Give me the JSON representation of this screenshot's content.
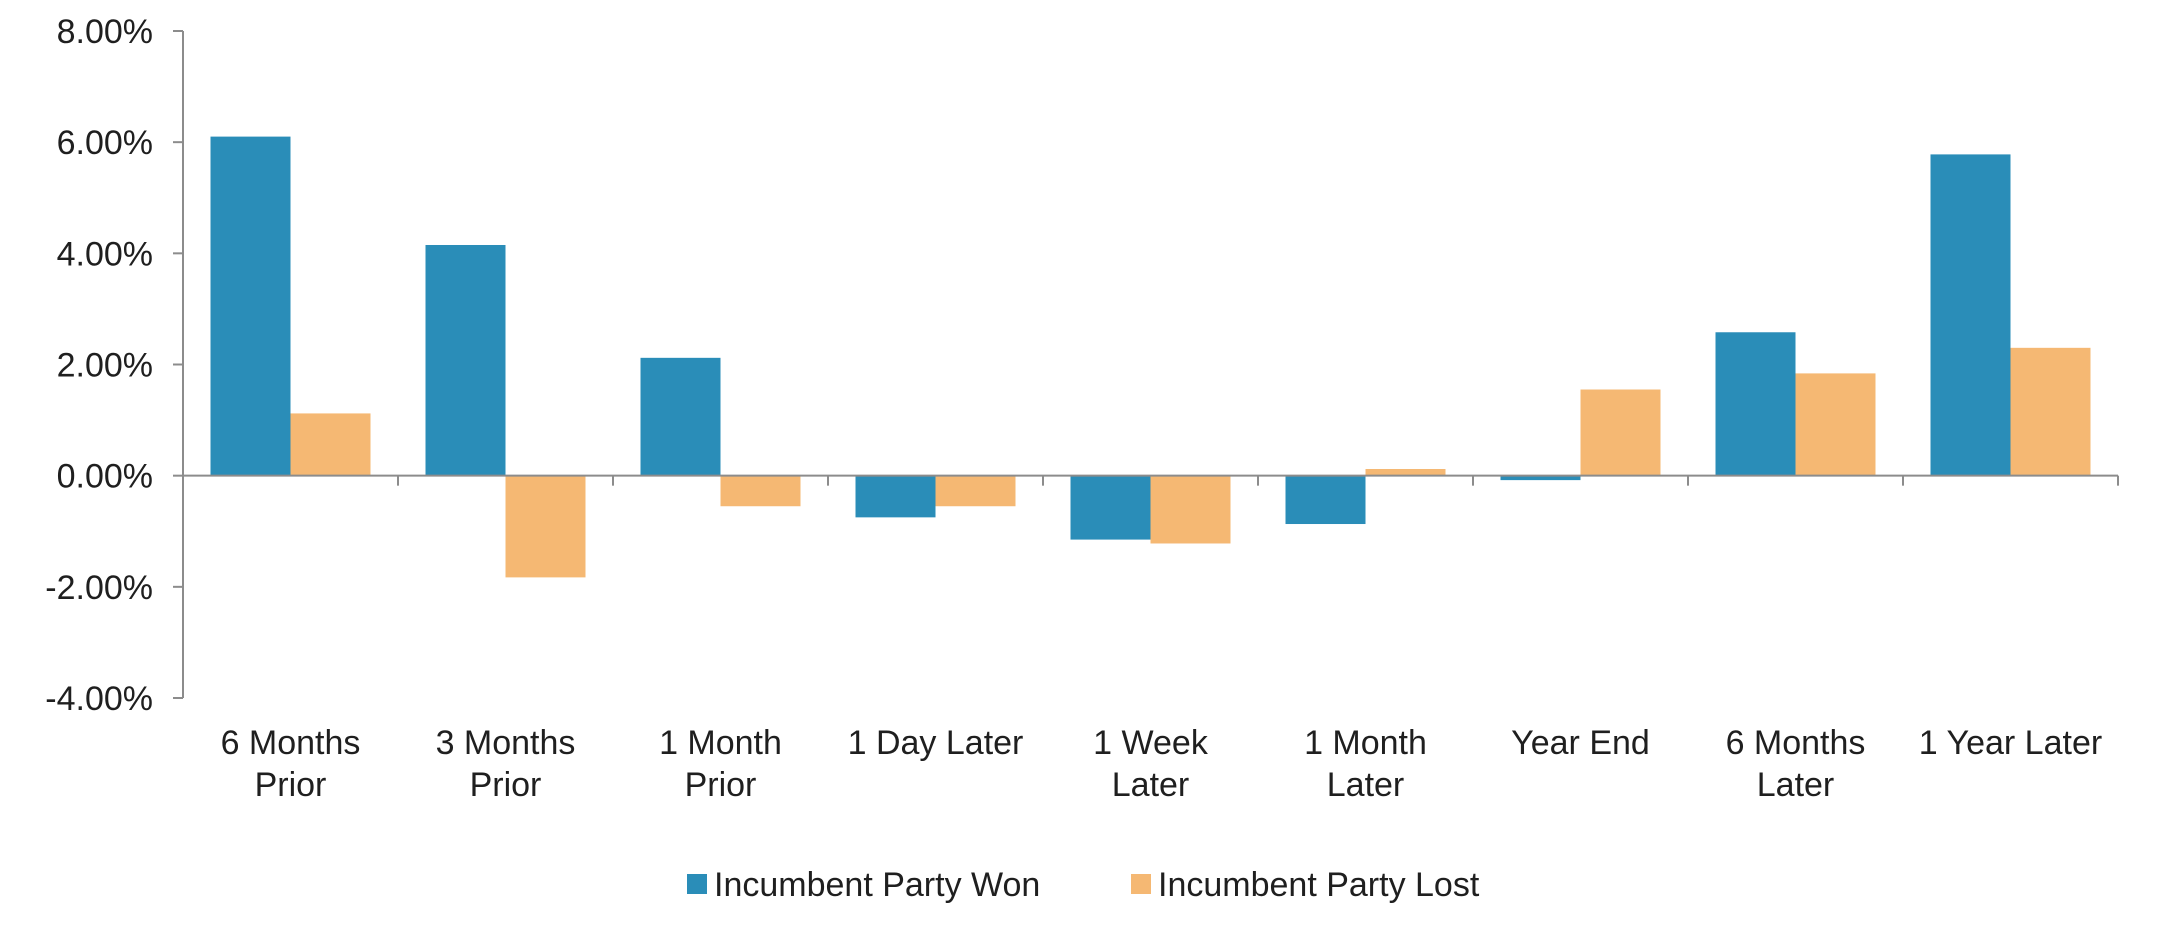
{
  "chart_data": {
    "type": "bar",
    "title": "",
    "xlabel": "",
    "ylabel": "",
    "categories": [
      [
        "6 Months",
        "Prior"
      ],
      [
        "3 Months",
        "Prior"
      ],
      [
        "1 Month",
        "Prior"
      ],
      [
        "1 Day Later"
      ],
      [
        "1 Week",
        "Later"
      ],
      [
        "1 Month",
        "Later"
      ],
      [
        "Year End"
      ],
      [
        "6 Months",
        "Later"
      ],
      [
        "1 Year Later"
      ]
    ],
    "series": [
      {
        "name": "Incumbent Party Won",
        "color": "#2a8db8",
        "values": [
          6.1,
          4.15,
          2.12,
          -0.75,
          -1.15,
          -0.87,
          -0.08,
          2.58,
          5.78
        ]
      },
      {
        "name": "Incumbent Party Lost",
        "color": "#f5b873",
        "values": [
          1.12,
          -1.83,
          -0.55,
          -0.55,
          -1.22,
          0.12,
          1.55,
          1.84,
          2.3
        ]
      }
    ],
    "ylim": [
      -4,
      8
    ],
    "yticks": [
      8,
      6,
      4,
      2,
      0,
      -2,
      -4
    ],
    "ytick_labels": [
      "8.00%",
      "6.00%",
      "4.00%",
      "2.00%",
      "0.00%",
      "-2.00%",
      "-4.00%"
    ],
    "grid": false,
    "legend_position": "bottom"
  }
}
